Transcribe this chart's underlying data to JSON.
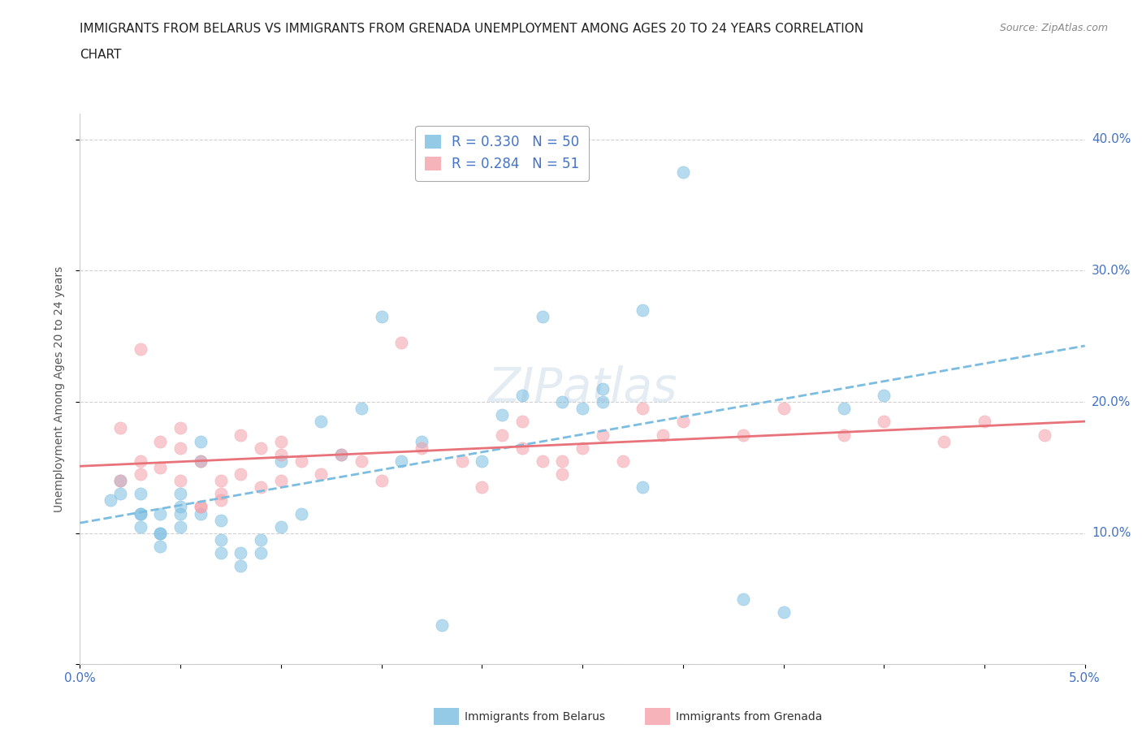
{
  "title_line1": "IMMIGRANTS FROM BELARUS VS IMMIGRANTS FROM GRENADA UNEMPLOYMENT AMONG AGES 20 TO 24 YEARS CORRELATION",
  "title_line2": "CHART",
  "source": "Source: ZipAtlas.com",
  "ylabel": "Unemployment Among Ages 20 to 24 years",
  "xlim": [
    0.0,
    0.05
  ],
  "ylim": [
    0.0,
    0.42
  ],
  "xtick_positions": [
    0.0,
    0.005,
    0.01,
    0.015,
    0.02,
    0.025,
    0.03,
    0.035,
    0.04,
    0.045,
    0.05
  ],
  "ytick_positions": [
    0.0,
    0.1,
    0.2,
    0.3,
    0.4
  ],
  "xtick_labels_show": {
    "0.0": "0.0%",
    "0.05": "5.0%"
  },
  "ytick_labels_show": {
    "0.10": "10.0%",
    "0.20": "20.0%",
    "0.30": "30.0%",
    "0.40": "40.0%"
  },
  "belarus_color": "#7bbde0",
  "grenada_color": "#f4a0a8",
  "belarus_line_color": "#7bbde0",
  "grenada_line_color": "#e8727a",
  "belarus_R": 0.33,
  "belarus_N": 50,
  "grenada_R": 0.284,
  "grenada_N": 51,
  "watermark": "ZIPatlas",
  "belarus_x": [
    0.0015,
    0.002,
    0.002,
    0.003,
    0.003,
    0.003,
    0.003,
    0.004,
    0.004,
    0.004,
    0.004,
    0.005,
    0.005,
    0.005,
    0.005,
    0.006,
    0.006,
    0.006,
    0.007,
    0.007,
    0.007,
    0.008,
    0.008,
    0.009,
    0.009,
    0.01,
    0.01,
    0.011,
    0.012,
    0.013,
    0.014,
    0.015,
    0.016,
    0.017,
    0.018,
    0.02,
    0.021,
    0.022,
    0.023,
    0.024,
    0.025,
    0.026,
    0.028,
    0.03,
    0.033,
    0.035,
    0.038,
    0.04,
    0.026,
    0.028
  ],
  "belarus_y": [
    0.125,
    0.13,
    0.14,
    0.115,
    0.13,
    0.105,
    0.115,
    0.1,
    0.09,
    0.1,
    0.115,
    0.13,
    0.115,
    0.105,
    0.12,
    0.115,
    0.155,
    0.17,
    0.085,
    0.095,
    0.11,
    0.085,
    0.075,
    0.085,
    0.095,
    0.105,
    0.155,
    0.115,
    0.185,
    0.16,
    0.195,
    0.265,
    0.155,
    0.17,
    0.03,
    0.155,
    0.19,
    0.205,
    0.265,
    0.2,
    0.195,
    0.2,
    0.135,
    0.375,
    0.05,
    0.04,
    0.195,
    0.205,
    0.21,
    0.27
  ],
  "grenada_x": [
    0.002,
    0.003,
    0.003,
    0.004,
    0.004,
    0.005,
    0.005,
    0.005,
    0.006,
    0.006,
    0.006,
    0.007,
    0.007,
    0.007,
    0.008,
    0.008,
    0.009,
    0.009,
    0.01,
    0.01,
    0.01,
    0.011,
    0.012,
    0.013,
    0.014,
    0.015,
    0.016,
    0.017,
    0.019,
    0.02,
    0.021,
    0.022,
    0.022,
    0.023,
    0.024,
    0.025,
    0.026,
    0.027,
    0.028,
    0.029,
    0.03,
    0.033,
    0.035,
    0.038,
    0.04,
    0.043,
    0.045,
    0.048,
    0.024,
    0.002,
    0.003
  ],
  "grenada_y": [
    0.14,
    0.145,
    0.155,
    0.17,
    0.15,
    0.165,
    0.18,
    0.14,
    0.155,
    0.12,
    0.12,
    0.13,
    0.14,
    0.125,
    0.175,
    0.145,
    0.135,
    0.165,
    0.16,
    0.14,
    0.17,
    0.155,
    0.145,
    0.16,
    0.155,
    0.14,
    0.245,
    0.165,
    0.155,
    0.135,
    0.175,
    0.165,
    0.185,
    0.155,
    0.145,
    0.165,
    0.175,
    0.155,
    0.195,
    0.175,
    0.185,
    0.175,
    0.195,
    0.175,
    0.185,
    0.17,
    0.185,
    0.175,
    0.155,
    0.18,
    0.24
  ]
}
